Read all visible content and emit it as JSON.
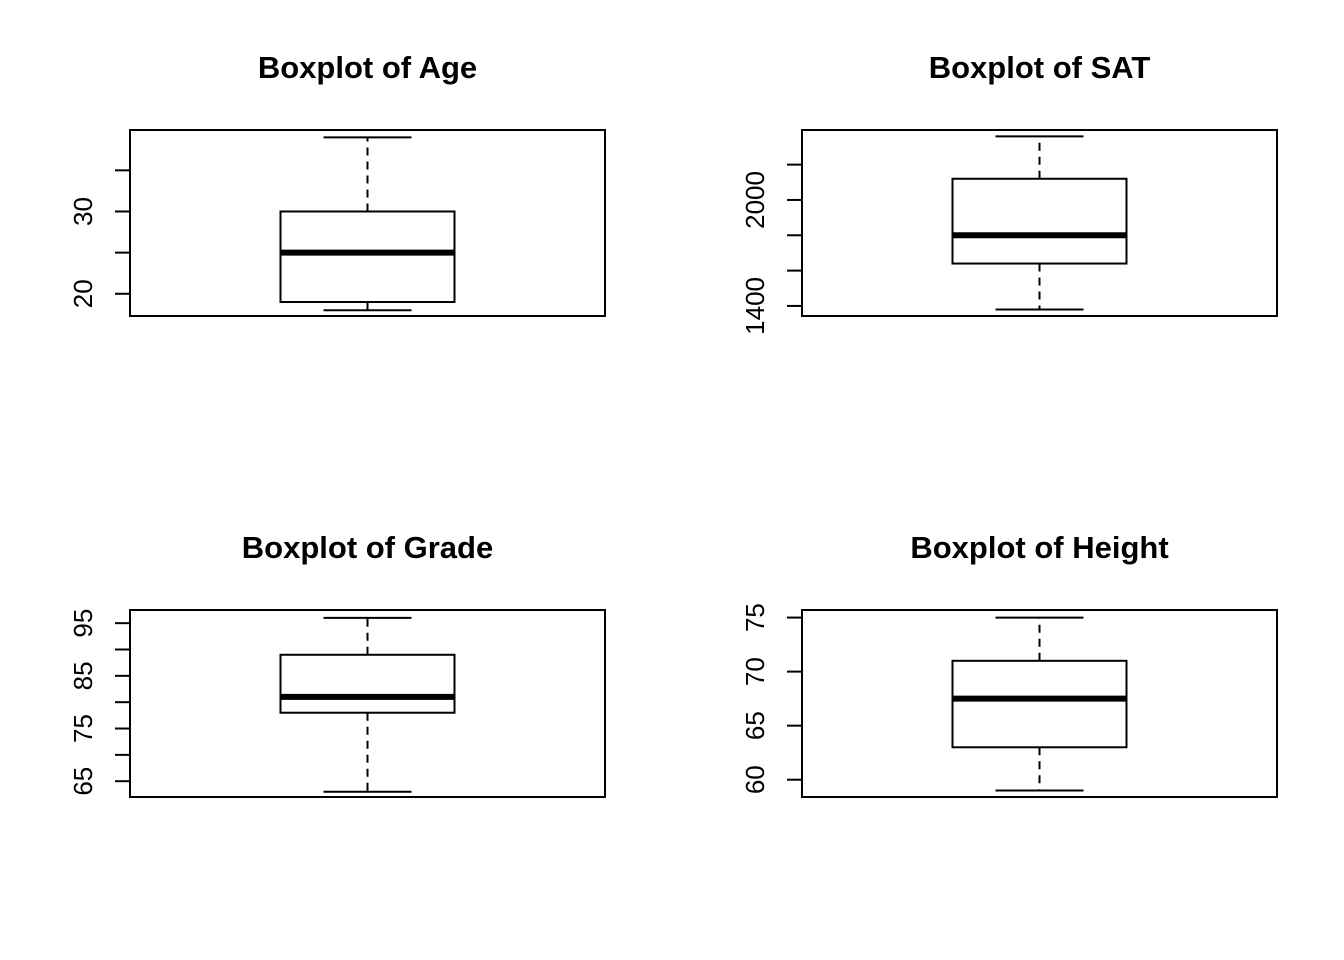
{
  "chart_data": [
    {
      "type": "boxplot",
      "title": "Boxplot of Age",
      "ylim": [
        17.3,
        39.9
      ],
      "yticks": [
        20,
        25,
        30,
        35
      ],
      "ytick_labels": [
        "20",
        "",
        "30",
        ""
      ],
      "box": {
        "whisker_low": 18,
        "q1": 19,
        "median": 25,
        "q3": 30,
        "whisker_high": 39
      }
    },
    {
      "type": "boxplot",
      "title": "Boxplot of SAT",
      "ylim": [
        1343,
        2396
      ],
      "yticks": [
        1400,
        1600,
        1800,
        2000,
        2200
      ],
      "ytick_labels": [
        "1400",
        "",
        "",
        "2000",
        ""
      ],
      "box": {
        "whisker_low": 1380,
        "q1": 1640,
        "median": 1800,
        "q3": 2120,
        "whisker_high": 2360
      }
    },
    {
      "type": "boxplot",
      "title": "Boxplot of Grade",
      "ylim": [
        62,
        97.5
      ],
      "yticks": [
        65,
        70,
        75,
        80,
        85,
        90,
        95
      ],
      "ytick_labels": [
        "65",
        "",
        "75",
        "",
        "85",
        "",
        "95"
      ],
      "box": {
        "whisker_low": 63,
        "q1": 78,
        "median": 81,
        "q3": 89,
        "whisker_high": 96
      }
    },
    {
      "type": "boxplot",
      "title": "Boxplot of Height",
      "ylim": [
        58.4,
        75.7
      ],
      "yticks": [
        60,
        65,
        70,
        75
      ],
      "ytick_labels": [
        "60",
        "65",
        "70",
        "75"
      ],
      "box": {
        "whisker_low": 59,
        "q1": 63,
        "median": 67.5,
        "q3": 71,
        "whisker_high": 75
      }
    }
  ]
}
